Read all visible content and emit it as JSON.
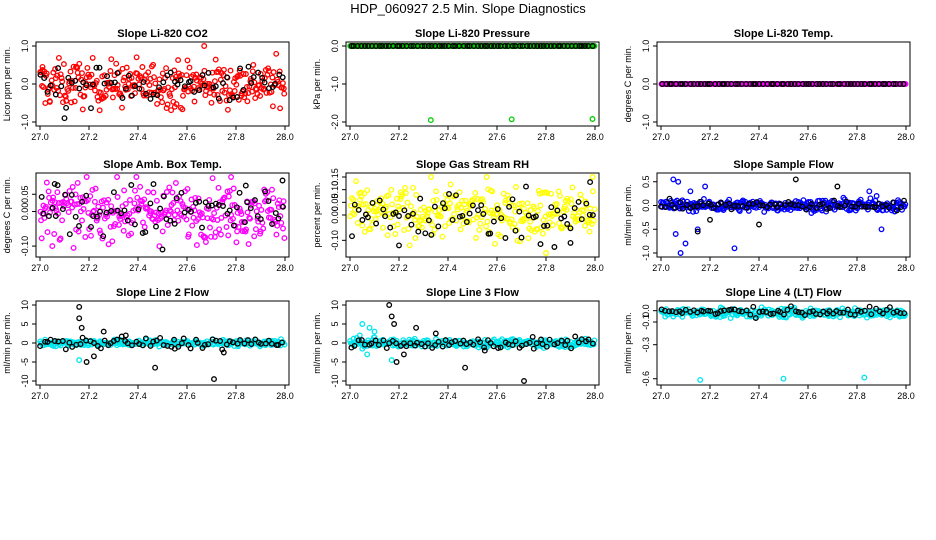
{
  "title": "HDP_060927  2.5 Min. Slope Diagnostics",
  "colors": {
    "outline": "#000000",
    "red": "#ff0000",
    "green": "#00cc00",
    "magenta": "#ff00ff",
    "yellow": "#ffff00",
    "blue": "#0000ff",
    "cyan": "#00e5ee"
  },
  "chart_data": [
    {
      "type": "scatter",
      "title": "Slope Li-820 CO2",
      "ylabel": "Licor ppm per min.",
      "xlim": [
        27.0,
        28.0
      ],
      "ylim": [
        -1.0,
        1.0
      ],
      "xticks": [
        "27.0",
        "27.2",
        "27.4",
        "27.6",
        "27.8",
        "28.0"
      ],
      "yticks": [
        "-1.0",
        "0.0",
        "1.0"
      ],
      "series": [
        {
          "color": "red",
          "dense": true,
          "n": 300,
          "center": 0.0,
          "spread": 0.3,
          "points": [
            [
              27.01,
              0.45
            ],
            [
              27.67,
              1.0
            ],
            [
              27.15,
              0.45
            ],
            [
              27.04,
              -0.45
            ],
            [
              27.55,
              -0.6
            ]
          ]
        },
        {
          "color": "black",
          "dense": true,
          "n": 70,
          "center": 0.0,
          "spread": 0.25,
          "points": [
            [
              27.1,
              -0.9
            ]
          ]
        }
      ]
    },
    {
      "type": "scatter",
      "title": "Slope Li-820 Pressure",
      "ylabel": "kPa per min.",
      "xlim": [
        27.0,
        28.0
      ],
      "ylim": [
        -2.0,
        0.0
      ],
      "xticks": [
        "27.0",
        "27.2",
        "27.4",
        "27.6",
        "27.8",
        "28.0"
      ],
      "yticks": [
        "-2.0",
        "-1.0",
        "0.0"
      ],
      "series": [
        {
          "color": "green",
          "dense": true,
          "n": 300,
          "center": 0.0,
          "spread": 0.0,
          "points": [
            [
              27.33,
              -1.95
            ],
            [
              27.66,
              -1.93
            ],
            [
              27.99,
              -1.92
            ]
          ]
        },
        {
          "color": "black",
          "dense": true,
          "n": 70,
          "center": 0.0,
          "spread": 0.0,
          "points": []
        }
      ]
    },
    {
      "type": "scatter",
      "title": "Slope Li-820 Temp.",
      "ylabel": "degrees C per min.",
      "xlim": [
        27.0,
        28.0
      ],
      "ylim": [
        -1.0,
        1.0
      ],
      "xticks": [
        "27.0",
        "27.2",
        "27.4",
        "27.6",
        "27.8",
        "28.0"
      ],
      "yticks": [
        "-1.0",
        "0.0",
        "1.0"
      ],
      "series": [
        {
          "color": "magenta",
          "dense": true,
          "n": 300,
          "center": 0.0,
          "spread": 0.0,
          "points": []
        },
        {
          "color": "black",
          "dense": true,
          "n": 70,
          "center": 0.0,
          "spread": 0.0,
          "points": []
        }
      ]
    },
    {
      "type": "scatter",
      "title": "Slope Amb. Box Temp.",
      "ylabel": "degrees C per min.",
      "xlim": [
        27.0,
        28.0
      ],
      "ylim": [
        -0.12,
        0.1
      ],
      "xticks": [
        "27.0",
        "27.2",
        "27.4",
        "27.6",
        "27.8",
        "28.0"
      ],
      "yticks": [
        "-0.10",
        "0.00",
        "0.05"
      ],
      "series": [
        {
          "color": "magenta",
          "dense": true,
          "n": 300,
          "center": 0.0,
          "spread": 0.04,
          "points": [
            [
              27.78,
              0.1
            ],
            [
              27.05,
              -0.1
            ]
          ]
        },
        {
          "color": "black",
          "dense": true,
          "n": 70,
          "center": 0.0,
          "spread": 0.04,
          "points": [
            [
              27.06,
              0.08
            ],
            [
              27.99,
              0.09
            ],
            [
              27.84,
              0.075
            ],
            [
              27.5,
              -0.11
            ]
          ]
        }
      ]
    },
    {
      "type": "scatter",
      "title": "Slope Gas Stream RH",
      "ylabel": "percent per min.",
      "xlim": [
        27.0,
        28.0
      ],
      "ylim": [
        -0.15,
        0.15
      ],
      "xticks": [
        "27.0",
        "27.2",
        "27.4",
        "27.6",
        "27.8",
        "28.0"
      ],
      "yticks": [
        "-0.10",
        "0.00",
        "0.05",
        "0.10",
        "0.15"
      ],
      "series": [
        {
          "color": "yellow",
          "dense": true,
          "n": 300,
          "center": 0.01,
          "spread": 0.05,
          "points": [
            [
              27.99,
              0.15
            ],
            [
              27.8,
              -0.15
            ]
          ]
        },
        {
          "color": "black",
          "dense": true,
          "n": 70,
          "center": 0.0,
          "spread": 0.05,
          "points": [
            [
              27.98,
              0.13
            ],
            [
              27.2,
              -0.12
            ],
            [
              27.9,
              -0.11
            ]
          ]
        }
      ]
    },
    {
      "type": "scatter",
      "title": "Slope Sample Flow",
      "ylabel": "ml/min per min.",
      "xlim": [
        27.0,
        28.0
      ],
      "ylim": [
        -1.0,
        0.6
      ],
      "xticks": [
        "27.0",
        "27.2",
        "27.4",
        "27.6",
        "27.8",
        "28.0"
      ],
      "yticks": [
        "-1.0",
        "-0.5",
        "0.0",
        "0.5"
      ],
      "series": [
        {
          "color": "blue",
          "dense": true,
          "n": 300,
          "center": 0.0,
          "spread": 0.06,
          "points": [
            [
              27.05,
              0.55
            ],
            [
              27.07,
              0.5
            ],
            [
              27.06,
              -0.6
            ],
            [
              27.1,
              -0.8
            ],
            [
              27.15,
              -0.5
            ],
            [
              27.18,
              0.4
            ],
            [
              27.12,
              0.3
            ],
            [
              27.08,
              -1.0
            ],
            [
              27.04,
              0.1
            ],
            [
              27.3,
              -0.9
            ],
            [
              27.85,
              0.3
            ],
            [
              27.9,
              -0.5
            ],
            [
              27.88,
              0.2
            ]
          ]
        },
        {
          "color": "black",
          "dense": true,
          "n": 70,
          "center": 0.0,
          "spread": 0.05,
          "points": [
            [
              27.55,
              0.55
            ],
            [
              27.72,
              0.4
            ],
            [
              27.2,
              -0.3
            ],
            [
              27.15,
              -0.55
            ],
            [
              27.4,
              -0.4
            ]
          ]
        }
      ]
    },
    {
      "type": "scatter",
      "title": "Slope Line 2 Flow",
      "ylabel": "ml/min per min.",
      "xlim": [
        27.0,
        28.0
      ],
      "ylim": [
        -10,
        10
      ],
      "xticks": [
        "27.0",
        "27.2",
        "27.4",
        "27.6",
        "27.8",
        "28.0"
      ],
      "yticks": [
        "-10",
        "-5",
        "0",
        "5",
        "10"
      ],
      "series": [
        {
          "color": "cyan",
          "dense": true,
          "n": 300,
          "center": 0.0,
          "spread": 0.4,
          "points": [
            [
              27.16,
              -4.5
            ]
          ]
        },
        {
          "color": "black",
          "dense": true,
          "n": 70,
          "center": 0.0,
          "spread": 0.8,
          "points": [
            [
              27.16,
              6.5
            ],
            [
              27.16,
              9.5
            ],
            [
              27.17,
              4.0
            ],
            [
              27.19,
              -5.0
            ],
            [
              27.26,
              3.0
            ],
            [
              27.35,
              2.0
            ],
            [
              27.47,
              -6.5
            ],
            [
              27.71,
              -9.5
            ],
            [
              27.22,
              -3.5
            ],
            [
              27.55,
              -1.5
            ],
            [
              27.75,
              -2.5
            ]
          ]
        }
      ]
    },
    {
      "type": "scatter",
      "title": "Slope Line 3 Flow",
      "ylabel": "ml/min per min.",
      "xlim": [
        27.0,
        28.0
      ],
      "ylim": [
        -10,
        10
      ],
      "xticks": [
        "27.0",
        "27.2",
        "27.4",
        "27.6",
        "27.8",
        "28.0"
      ],
      "yticks": [
        "-10",
        "-5",
        "0",
        "5",
        "10"
      ],
      "series": [
        {
          "color": "cyan",
          "dense": true,
          "n": 300,
          "center": 0.0,
          "spread": 0.5,
          "points": [
            [
              27.05,
              5.0
            ],
            [
              27.08,
              4.0
            ],
            [
              27.1,
              3.0
            ],
            [
              27.04,
              2.0
            ],
            [
              27.07,
              -3.0
            ],
            [
              27.05,
              -1.5
            ],
            [
              27.17,
              -4.5
            ],
            [
              27.1,
              1.5
            ]
          ]
        },
        {
          "color": "black",
          "dense": true,
          "n": 70,
          "center": 0.0,
          "spread": 0.8,
          "points": [
            [
              27.16,
              10.0
            ],
            [
              27.17,
              7.0
            ],
            [
              27.18,
              5.0
            ],
            [
              27.19,
              -5.0
            ],
            [
              27.27,
              4.0
            ],
            [
              27.35,
              2.5
            ],
            [
              27.47,
              -6.5
            ],
            [
              27.71,
              -10.0
            ],
            [
              27.22,
              -3.0
            ],
            [
              27.55,
              -2.0
            ],
            [
              27.75,
              -1.5
            ]
          ]
        }
      ]
    },
    {
      "type": "scatter",
      "title": "Slope Line 4 (LT) Flow",
      "ylabel": "ml/min per min.",
      "xlim": [
        27.0,
        28.0
      ],
      "ylim": [
        -0.62,
        0.05
      ],
      "xticks": [
        "27.0",
        "27.2",
        "27.4",
        "27.6",
        "27.8",
        "28.0"
      ],
      "yticks": [
        "-0.6",
        "-0.3",
        "-0.1",
        "0.0"
      ],
      "series": [
        {
          "color": "cyan",
          "dense": true,
          "n": 300,
          "center": -0.02,
          "spread": 0.02,
          "points": [
            [
              27.16,
              -0.61
            ],
            [
              27.5,
              -0.6
            ],
            [
              27.83,
              -0.59
            ]
          ]
        },
        {
          "color": "black",
          "dense": true,
          "n": 70,
          "center": -0.01,
          "spread": 0.02,
          "points": []
        }
      ]
    }
  ]
}
